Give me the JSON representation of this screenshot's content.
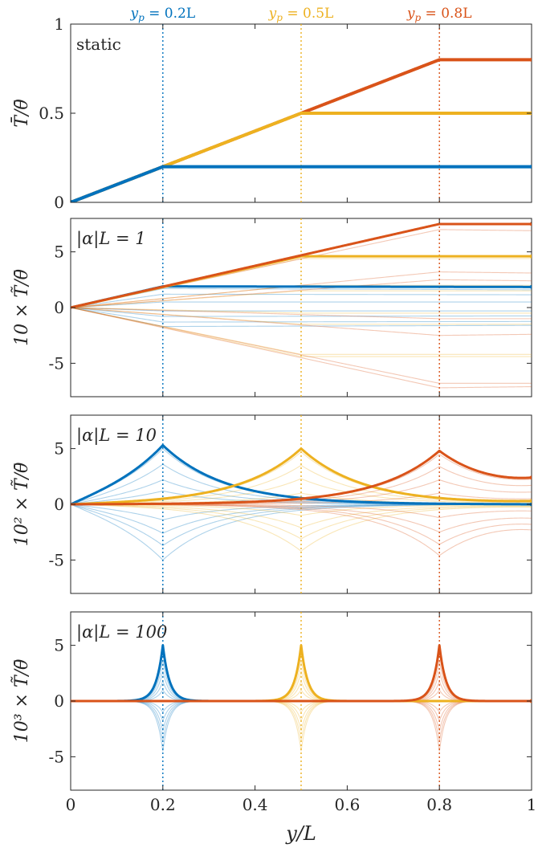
{
  "chart_data": {
    "type": "line",
    "xlabel": "y/L",
    "xlim": [
      0,
      1
    ],
    "xticks": [
      0,
      0.2,
      0.4,
      0.6,
      0.8,
      1
    ],
    "xtick_labels": [
      "0",
      "0.2",
      "0.4",
      "0.6",
      "0.8",
      "1"
    ],
    "series_colors": [
      "#0072BD",
      "#EDB120",
      "#D95319"
    ],
    "probe_labels": [
      {
        "prefix": "y",
        "sub": "p",
        "rest": " = 0.2L",
        "x": 0.2,
        "color": "#0072BD"
      },
      {
        "prefix": "y",
        "sub": "p",
        "rest": " = 0.5L",
        "x": 0.5,
        "color": "#EDB120"
      },
      {
        "prefix": "y",
        "sub": "p",
        "rest": " = 0.8L",
        "x": 0.8,
        "color": "#D95319"
      }
    ],
    "panels": [
      {
        "id": "static",
        "annotation": "static",
        "ylabel": "T̄/θ̄",
        "ylim": [
          0,
          1
        ],
        "yticks": [
          0,
          0.5,
          1
        ],
        "ytick_labels": [
          "0",
          "0.5",
          "1"
        ],
        "model": "static",
        "series": [
          {
            "name": "y_p = 0.2L",
            "yp": 0.2
          },
          {
            "name": "y_p = 0.5L",
            "yp": 0.5
          },
          {
            "name": "y_p = 0.8L",
            "yp": 0.8
          }
        ]
      },
      {
        "id": "alphaL1",
        "annotation": "|α|L = 1",
        "ylabel": "10 × T̃/θ̄",
        "ylim": [
          -8,
          8
        ],
        "yticks": [
          -5,
          0,
          5
        ],
        "ytick_labels": [
          "-5",
          "0",
          "5"
        ],
        "model": "piecewise",
        "series": [
          {
            "name": "y_p = 0.2L",
            "yp": 0.2,
            "peak": 1.9,
            "end": 1.85,
            "light": [
              [
                1.7,
                1.6
              ],
              [
                1.2,
                1.15
              ],
              [
                0.5,
                0.5
              ],
              [
                -0.3,
                -0.3
              ],
              [
                -0.8,
                -0.75
              ],
              [
                -1.3,
                -1.25
              ],
              [
                -1.7,
                -1.6
              ]
            ]
          },
          {
            "name": "y_p = 0.5L",
            "yp": 0.5,
            "peak": 4.6,
            "end": 4.6,
            "light": [
              [
                4.4,
                4.4
              ],
              [
                2.0,
                2.0
              ],
              [
                1.5,
                1.5
              ],
              [
                -0.5,
                -0.5
              ],
              [
                -1.5,
                -1.5
              ],
              [
                -4.2,
                -4.2
              ],
              [
                -4.4,
                -4.4
              ]
            ]
          },
          {
            "name": "y_p = 0.8L",
            "yp": 0.8,
            "peak": 7.5,
            "end": 7.5,
            "light": [
              [
                7.0,
                6.9
              ],
              [
                3.2,
                3.1
              ],
              [
                2.5,
                2.4
              ],
              [
                -1.0,
                -1.0
              ],
              [
                -2.5,
                -2.4
              ],
              [
                -6.8,
                -6.8
              ],
              [
                -7.2,
                -7.1
              ]
            ]
          }
        ]
      },
      {
        "id": "alphaL10",
        "annotation": "|α|L = 10",
        "ylabel": "10² × T̃/θ̄",
        "ylim": [
          -8,
          8
        ],
        "yticks": [
          -5,
          0,
          5
        ],
        "ytick_labels": [
          "-5",
          "0",
          "5"
        ],
        "model": "peak",
        "decay": 7.5,
        "series": [
          {
            "name": "y_p = 0.2L",
            "yp": 0.2,
            "peak": 5.3,
            "end": 0,
            "light": [
              5.0,
              3.6,
              2.2,
              1.2,
              -1.4,
              -2.6,
              -3.7,
              -5.0
            ]
          },
          {
            "name": "y_p = 0.5L",
            "yp": 0.5,
            "peak": 5.0,
            "end": 0.3,
            "light": [
              4.7,
              3.5,
              2.3,
              1.0,
              -1.0,
              -2.1,
              -3.1,
              -4.2
            ]
          },
          {
            "name": "y_p = 0.8L",
            "yp": 0.8,
            "peak": 4.8,
            "end": 2.4,
            "light": [
              4.5,
              3.4,
              2.2,
              1.0,
              -1.2,
              -2.5,
              -3.6,
              -4.6
            ]
          }
        ]
      },
      {
        "id": "alphaL100",
        "annotation": "|α|L = 100",
        "ylabel": "10³ × T̃/θ̄",
        "ylim": [
          -8,
          8
        ],
        "yticks": [
          -5,
          0,
          5
        ],
        "ytick_labels": [
          "-5",
          "0",
          "5"
        ],
        "model": "peak",
        "decay": 70,
        "series": [
          {
            "name": "y_p = 0.2L",
            "yp": 0.2,
            "peak": 5.0,
            "end": 0,
            "light": [
              4.5,
              3.6,
              2.7,
              1.8,
              1.0,
              -1.0,
              -1.8,
              -2.7,
              -3.6,
              -4.5
            ]
          },
          {
            "name": "y_p = 0.5L",
            "yp": 0.5,
            "peak": 5.0,
            "end": 0,
            "light": [
              4.5,
              3.6,
              2.7,
              1.8,
              1.0,
              -1.0,
              -1.8,
              -2.7,
              -3.6,
              -4.5
            ]
          },
          {
            "name": "y_p = 0.8L",
            "yp": 0.8,
            "peak": 5.0,
            "end": 0,
            "light": [
              4.5,
              3.6,
              2.7,
              1.8,
              1.0,
              -1.0,
              -1.8,
              -2.7,
              -3.6,
              -4.5
            ]
          }
        ]
      }
    ]
  }
}
